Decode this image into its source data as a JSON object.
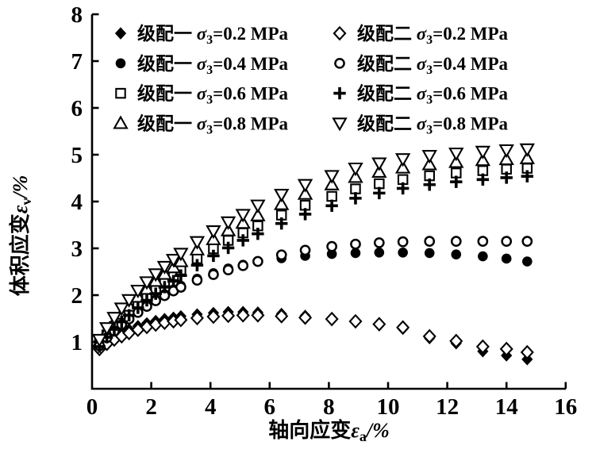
{
  "figure": {
    "background": "#ffffff",
    "foreground": "#000000"
  },
  "chart_data": {
    "type": "scatter",
    "title": "",
    "xlabel": {
      "cjk": "轴向应变",
      "symbol": "ε",
      "subscript": "a",
      "unit": "/%"
    },
    "ylabel": {
      "cjk": "体积应变",
      "symbol": "ε",
      "subscript": "v",
      "unit": "/%"
    },
    "xlim": [
      0,
      16
    ],
    "ylim": [
      0,
      8
    ],
    "x_tick_labels": [
      0,
      2,
      4,
      6,
      8,
      10,
      12,
      14,
      16
    ],
    "y_tick_labels": [
      1,
      2,
      3,
      4,
      5,
      6,
      7,
      8
    ],
    "grid": false,
    "legend_position": "top-inside-two-columns",
    "legend": {
      "sigma_symbol": "σ",
      "sigma_subscript": "3",
      "unit": "MPa"
    },
    "x": [
      0.25,
      0.5,
      0.75,
      1.0,
      1.25,
      1.55,
      1.85,
      2.15,
      2.45,
      2.75,
      3.0,
      3.55,
      4.1,
      4.6,
      5.1,
      5.6,
      6.4,
      7.2,
      8.1,
      8.9,
      9.7,
      10.5,
      11.4,
      12.3,
      13.2,
      14.0,
      14.7
    ],
    "series": [
      {
        "name": "级配一 σ3=0.2 MPa",
        "grade": "级配一",
        "sigma_value": "0.2",
        "marker": "filled-diamond",
        "legend_col": 1,
        "legend_row": 1,
        "values": [
          0.9,
          1.02,
          1.12,
          1.2,
          1.27,
          1.34,
          1.4,
          1.45,
          1.49,
          1.52,
          1.55,
          1.59,
          1.62,
          1.64,
          1.64,
          1.63,
          1.6,
          1.56,
          1.5,
          1.44,
          1.37,
          1.28,
          1.08,
          0.97,
          0.8,
          0.71,
          0.63
        ]
      },
      {
        "name": "级配一 σ3=0.4 MPa",
        "grade": "级配一",
        "sigma_value": "0.4",
        "marker": "filled-circle",
        "legend_col": 1,
        "legend_row": 2,
        "values": [
          0.95,
          1.12,
          1.26,
          1.4,
          1.52,
          1.66,
          1.79,
          1.91,
          2.02,
          2.12,
          2.2,
          2.35,
          2.47,
          2.57,
          2.65,
          2.72,
          2.79,
          2.84,
          2.88,
          2.9,
          2.91,
          2.91,
          2.9,
          2.87,
          2.83,
          2.78,
          2.72
        ]
      },
      {
        "name": "级配一 σ3=0.6 MPa",
        "grade": "级配一",
        "sigma_value": "0.6",
        "marker": "open-square",
        "legend_col": 1,
        "legend_row": 3,
        "values": [
          0.95,
          1.15,
          1.33,
          1.5,
          1.65,
          1.82,
          1.99,
          2.14,
          2.29,
          2.42,
          2.54,
          2.78,
          2.99,
          3.17,
          3.33,
          3.48,
          3.71,
          3.92,
          4.11,
          4.27,
          4.38,
          4.47,
          4.55,
          4.61,
          4.66,
          4.69,
          4.71
        ]
      },
      {
        "name": "级配一 σ3=0.8 MPa",
        "grade": "级配一",
        "sigma_value": "0.8",
        "marker": "open-triangle-up",
        "legend_col": 1,
        "legend_row": 4,
        "values": [
          1.0,
          1.22,
          1.42,
          1.6,
          1.77,
          1.96,
          2.13,
          2.3,
          2.45,
          2.59,
          2.72,
          2.97,
          3.19,
          3.38,
          3.54,
          3.7,
          3.94,
          4.16,
          4.36,
          4.52,
          4.63,
          4.72,
          4.79,
          4.84,
          4.88,
          4.9,
          4.92
        ]
      },
      {
        "name": "级配二 σ3=0.2 MPa",
        "grade": "级配二",
        "sigma_value": "0.2",
        "marker": "open-diamond",
        "legend_col": 2,
        "legend_row": 1,
        "values": [
          0.85,
          0.96,
          1.05,
          1.12,
          1.19,
          1.26,
          1.32,
          1.37,
          1.41,
          1.44,
          1.47,
          1.51,
          1.54,
          1.56,
          1.57,
          1.57,
          1.55,
          1.52,
          1.49,
          1.44,
          1.38,
          1.31,
          1.12,
          1.02,
          0.9,
          0.85,
          0.78
        ]
      },
      {
        "name": "级配二 σ3=0.4 MPa",
        "grade": "级配二",
        "sigma_value": "0.4",
        "marker": "open-circle",
        "legend_col": 2,
        "legend_row": 2,
        "values": [
          0.92,
          1.09,
          1.23,
          1.37,
          1.49,
          1.63,
          1.76,
          1.88,
          1.99,
          2.09,
          2.17,
          2.32,
          2.44,
          2.54,
          2.63,
          2.72,
          2.86,
          2.96,
          3.04,
          3.09,
          3.12,
          3.14,
          3.15,
          3.15,
          3.15,
          3.15,
          3.15
        ]
      },
      {
        "name": "级配二 σ3=0.6 MPa",
        "grade": "级配二",
        "sigma_value": "0.6",
        "marker": "plus",
        "legend_col": 2,
        "legend_row": 3,
        "values": [
          0.9,
          1.1,
          1.27,
          1.43,
          1.57,
          1.73,
          1.89,
          2.03,
          2.17,
          2.3,
          2.42,
          2.64,
          2.84,
          3.01,
          3.17,
          3.31,
          3.53,
          3.73,
          3.91,
          4.07,
          4.18,
          4.28,
          4.36,
          4.42,
          4.47,
          4.51,
          4.54
        ]
      },
      {
        "name": "级配二 σ3=0.8 MPa",
        "grade": "级配二",
        "sigma_value": "0.8",
        "marker": "open-triangle-down",
        "legend_col": 2,
        "legend_row": 4,
        "values": [
          1.05,
          1.3,
          1.52,
          1.72,
          1.9,
          2.1,
          2.28,
          2.45,
          2.61,
          2.76,
          2.89,
          3.14,
          3.37,
          3.56,
          3.72,
          3.92,
          4.15,
          4.36,
          4.55,
          4.71,
          4.82,
          4.91,
          4.98,
          5.03,
          5.07,
          5.1,
          5.12
        ]
      }
    ]
  }
}
